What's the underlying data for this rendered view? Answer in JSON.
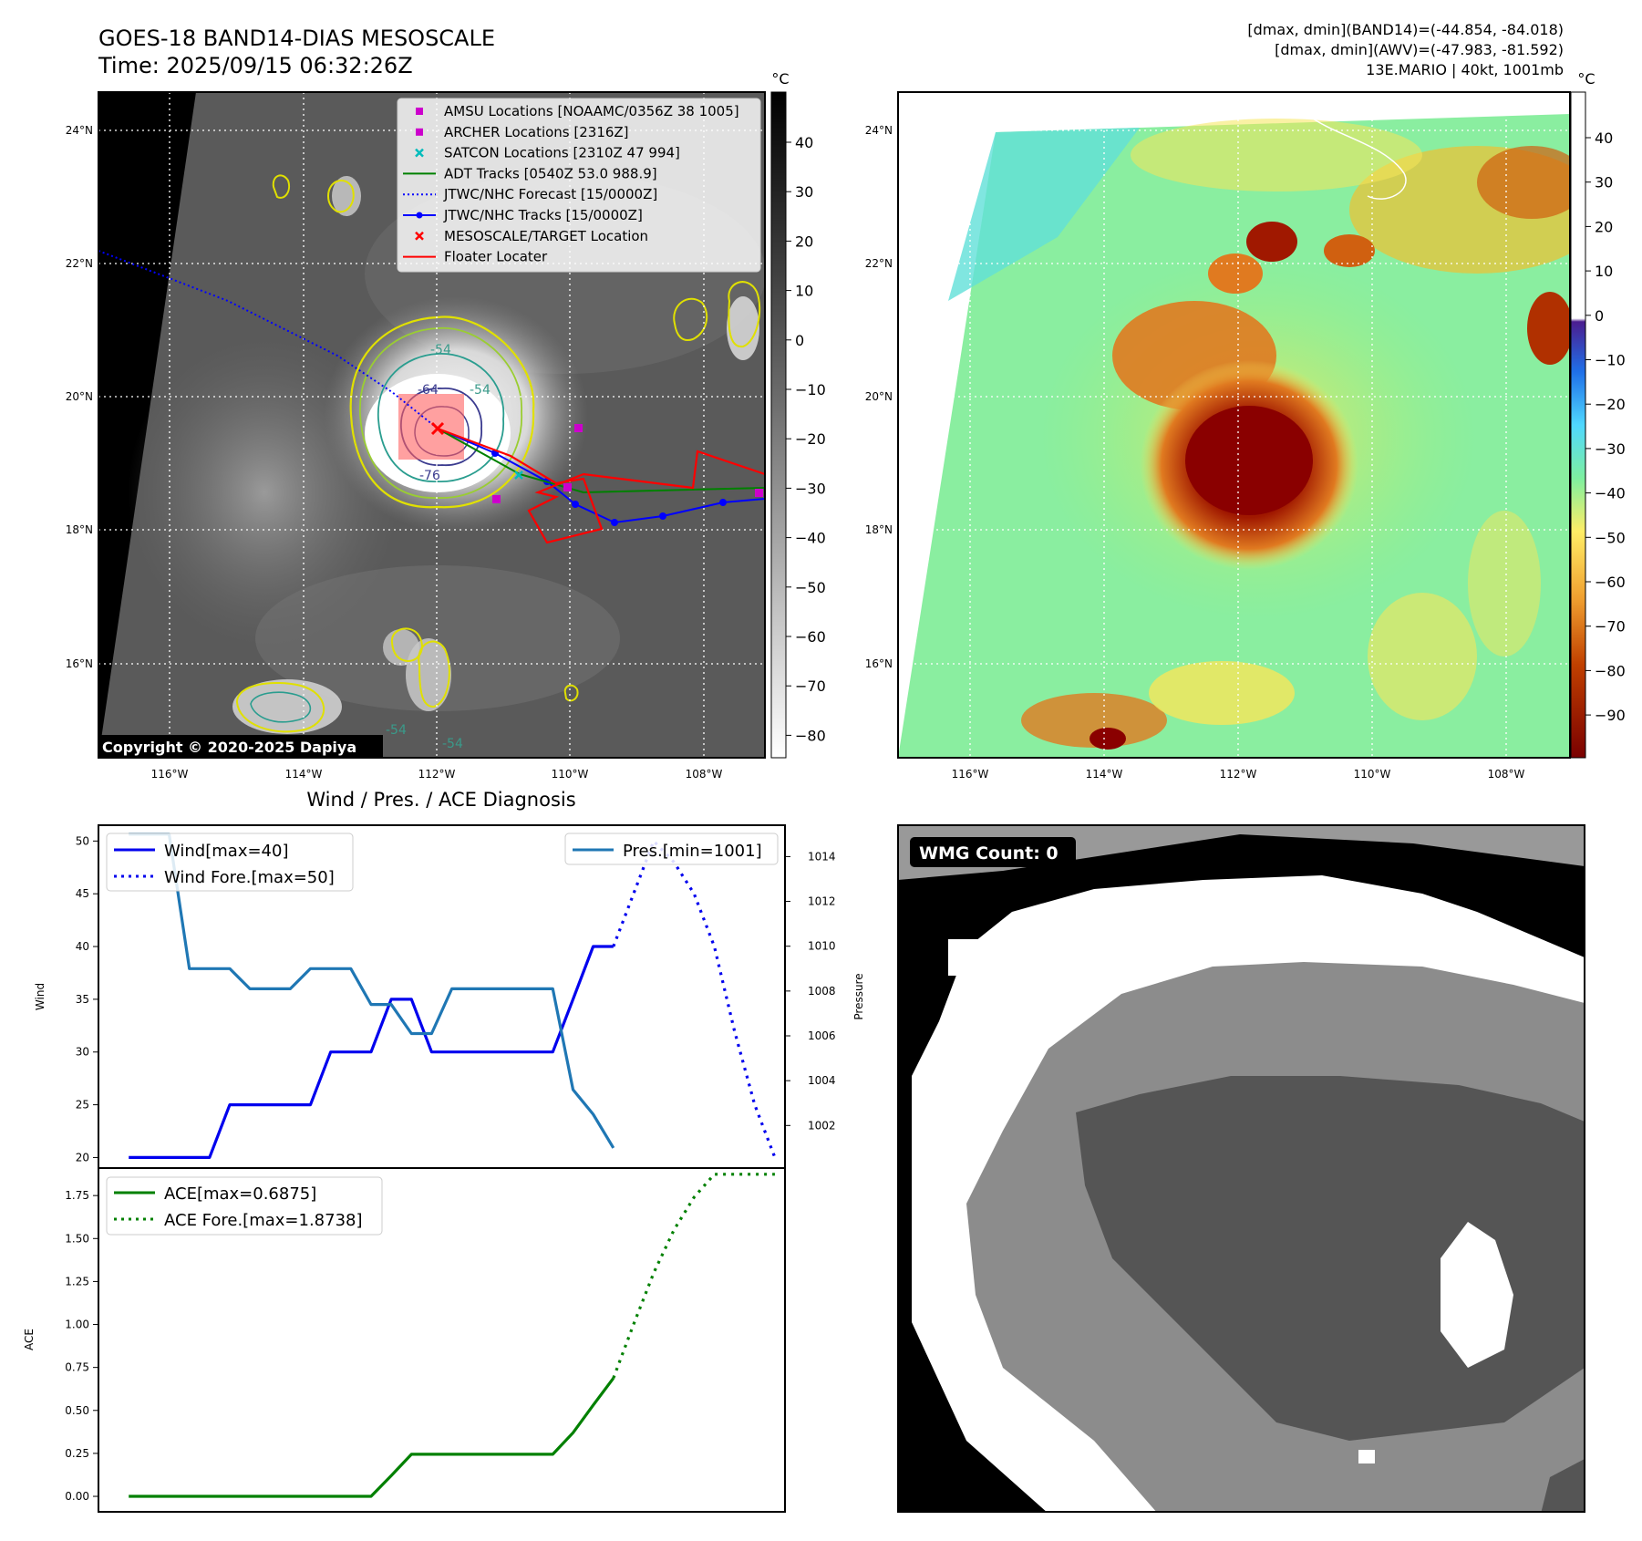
{
  "header": {
    "title_line1": "GOES-18 BAND14-DIAS MESOSCALE",
    "title_line2": "Time: 2025/09/15 06:32:26Z",
    "info_line1": "[dmax, dmin](BAND14)=(-44.854, -84.018)",
    "info_line2": "[dmax, dmin](AWV)=(-47.983, -81.592)",
    "info_line3": "13E.MARIO | 40kt, 1001mb"
  },
  "map_axes": {
    "lat_ticks": [
      "24°N",
      "22°N",
      "20°N",
      "18°N",
      "16°N"
    ],
    "lon_ticks": [
      "116°W",
      "114°W",
      "112°W",
      "110°W",
      "108°W"
    ]
  },
  "ir_panel": {
    "colorbar_unit": "°C",
    "colorbar_ticks": [
      "40",
      "30",
      "20",
      "10",
      "0",
      "−10",
      "−20",
      "−30",
      "−40",
      "−50",
      "−60",
      "−70",
      "−80"
    ],
    "contour_labels": [
      "-54",
      "-64",
      "-54",
      "-76",
      "-54",
      "-54"
    ],
    "copyright": "Copyright © 2020-2025 Dapiya",
    "legend": [
      {
        "label": "AMSU Locations [NOAAMC/0356Z 38 1005]",
        "color": "#cc00cc",
        "marker": "square"
      },
      {
        "label": "ARCHER Locations [2316Z]",
        "color": "#cc00cc",
        "marker": "square"
      },
      {
        "label": "SATCON Locations [2310Z 47 994]",
        "color": "#00bbbb",
        "marker": "x"
      },
      {
        "label": "ADT Tracks [0540Z 53.0 988.9]",
        "color": "#008000",
        "marker": "line"
      },
      {
        "label": "JTWC/NHC Forecast [15/0000Z]",
        "color": "#0000ff",
        "marker": "dotted"
      },
      {
        "label": "JTWC/NHC Tracks [15/0000Z]",
        "color": "#0000ff",
        "marker": "line-dot"
      },
      {
        "label": "MESOSCALE/TARGET Location",
        "color": "#ff0000",
        "marker": "x"
      },
      {
        "label": "Floater Locater",
        "color": "#ff0000",
        "marker": "line"
      }
    ]
  },
  "wv_panel": {
    "colorbar_unit": "°C",
    "colorbar_ticks": [
      "40",
      "30",
      "20",
      "10",
      "0",
      "−10",
      "−20",
      "−30",
      "−40",
      "−50",
      "−60",
      "−70",
      "−80",
      "−90"
    ]
  },
  "wmg_panel": {
    "badge": "WMG Count: 0"
  },
  "chart_data": [
    {
      "type": "line",
      "title": "Wind / Pres. / ACE Diagnosis",
      "ylabel": "Wind",
      "y2label": "Pressure",
      "ylim": [
        19,
        51.5
      ],
      "y2lim": [
        1000.1,
        1015.4
      ],
      "yticks": [
        "50",
        "45",
        "40",
        "35",
        "30",
        "25",
        "20"
      ],
      "y2ticks": [
        "1014",
        "1012",
        "1010",
        "1008",
        "1006",
        "1004",
        "1002"
      ],
      "xlim": [
        0,
        34
      ],
      "legend": [
        "Wind[max=40]",
        "Wind Fore.[max=50]"
      ],
      "legend2": [
        "Pres.[min=1001]"
      ],
      "series": [
        {
          "name": "Wind[max=40]",
          "axis": "left",
          "style": "solid",
          "color": "#0000ee",
          "x": [
            1.5,
            2.5,
            3.5,
            4.5,
            5.5,
            6.5,
            7.5,
            8.5,
            9.5,
            10.5,
            11.5,
            12.5,
            13.5,
            14.5,
            15.5,
            16.5,
            17.5,
            18.5,
            19.5,
            20.5,
            21.5,
            22.5,
            23.5,
            24.5,
            25.5
          ],
          "y": [
            20,
            20,
            20,
            20,
            20,
            25,
            25,
            25,
            25,
            25,
            30,
            30,
            30,
            35,
            35,
            30,
            30,
            30,
            30,
            30,
            30,
            30,
            35,
            40,
            40
          ]
        },
        {
          "name": "Wind Fore.[max=50]",
          "axis": "left",
          "style": "dotted",
          "color": "#0000ee",
          "x": [
            25.5,
            26.5,
            27.5,
            28.5,
            29.5,
            30.5,
            31.5,
            32.5,
            33.5
          ],
          "y": [
            40,
            45,
            50,
            48,
            45,
            40,
            32,
            25,
            20
          ]
        },
        {
          "name": "Pres.[min=1001]",
          "axis": "right",
          "style": "solid",
          "color": "#1f77b4",
          "x": [
            1.5,
            2.5,
            3.5,
            4.5,
            5.5,
            6.5,
            7.5,
            8.5,
            9.5,
            10.5,
            11.5,
            12.5,
            13.5,
            14.5,
            15.5,
            16.5,
            17.5,
            18.5,
            19.5,
            20.5,
            21.5,
            22.5,
            23.5,
            24.5,
            25.5
          ],
          "y": [
            1015,
            1015,
            1015,
            1009,
            1009,
            1009,
            1008.1,
            1008.1,
            1008.1,
            1009,
            1009,
            1009,
            1007.4,
            1007.4,
            1006.1,
            1006.1,
            1008.1,
            1008.1,
            1008.1,
            1008.1,
            1008.1,
            1008.1,
            1003.6,
            1002.5,
            1001
          ]
        }
      ]
    },
    {
      "type": "line",
      "ylabel": "ACE",
      "ylim": [
        -0.09,
        1.91
      ],
      "yticks": [
        "1.75",
        "1.50",
        "1.25",
        "1.00",
        "0.75",
        "0.50",
        "0.25",
        "0.00"
      ],
      "xlim": [
        0,
        34
      ],
      "legend": [
        "ACE[max=0.6875]",
        "ACE Fore.[max=1.8738]"
      ],
      "series": [
        {
          "name": "ACE[max=0.6875]",
          "style": "solid",
          "color": "#008000",
          "x": [
            1.5,
            2.5,
            3.5,
            4.5,
            5.5,
            6.5,
            7.5,
            8.5,
            9.5,
            10.5,
            11.5,
            12.5,
            13.5,
            14.5,
            15.5,
            16.5,
            17.5,
            18.5,
            19.5,
            20.5,
            21.5,
            22.5,
            23.5,
            24.5,
            25.5
          ],
          "y": [
            0,
            0,
            0,
            0,
            0,
            0,
            0,
            0,
            0,
            0,
            0,
            0,
            0,
            0.12,
            0.245,
            0.245,
            0.245,
            0.245,
            0.245,
            0.245,
            0.245,
            0.245,
            0.37,
            0.53,
            0.6875
          ]
        },
        {
          "name": "ACE Fore.[max=1.8738]",
          "style": "dotted",
          "color": "#008000",
          "x": [
            25.5,
            26.5,
            27.5,
            28.5,
            29.5,
            30.5,
            31.5,
            32.5,
            33.5
          ],
          "y": [
            0.6875,
            1.0,
            1.3,
            1.55,
            1.74,
            1.8738,
            1.8738,
            1.8738,
            1.8738
          ]
        }
      ]
    }
  ]
}
